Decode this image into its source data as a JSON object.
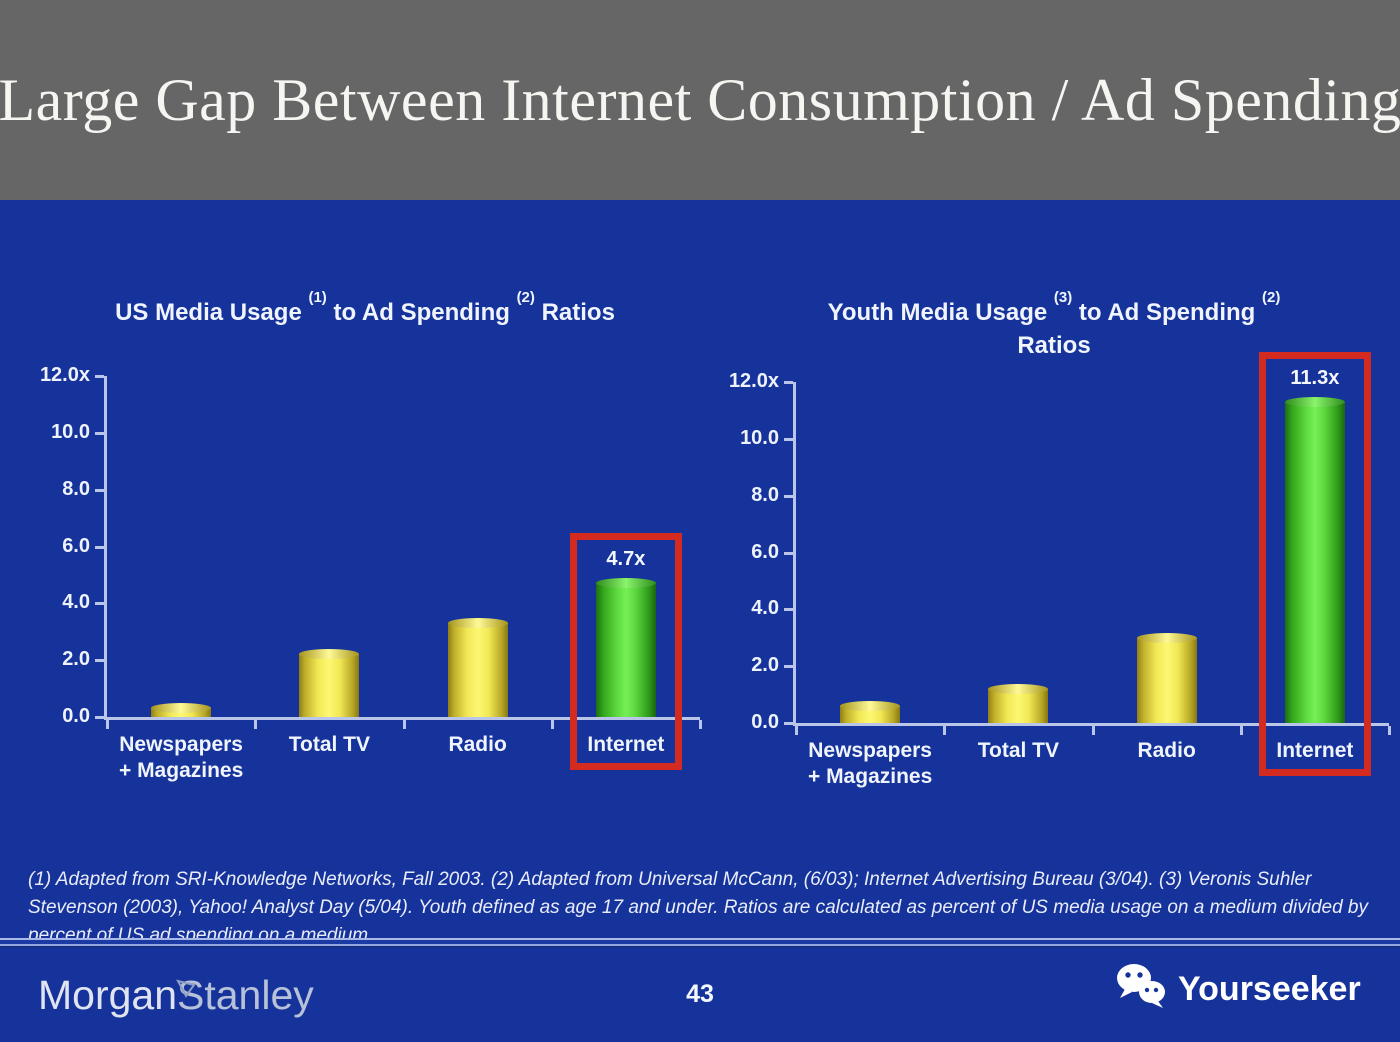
{
  "header": {
    "title": "Large Gap Between Internet Consumption / Ad Spending"
  },
  "chart_data": [
    {
      "type": "bar",
      "id": "us-ratio-chart",
      "title_plain": "US Media Usage (1) to Ad Spending (2) Ratios",
      "title_segments": [
        [
          "text",
          "US Media Usage "
        ],
        [
          "sup",
          "(1)"
        ],
        [
          "text",
          " to Ad Spending "
        ],
        [
          "sup",
          "(2)"
        ],
        [
          "text",
          " Ratios"
        ]
      ],
      "categories": [
        "Newspapers + Magazines",
        "Total TV",
        "Radio",
        "Internet"
      ],
      "category_lines": [
        [
          "Newspapers",
          "+ Magazines"
        ],
        [
          "Total TV"
        ],
        [
          "Radio"
        ],
        [
          "Internet"
        ]
      ],
      "values": [
        0.3,
        2.2,
        3.3,
        4.7
      ],
      "bar_labels": [
        "",
        "",
        "",
        "4.7x"
      ],
      "bar_colors": [
        "yellow",
        "yellow",
        "yellow",
        "green"
      ],
      "highlight_index": 3,
      "ylabel_ticks": [
        "12.0x",
        "10.0",
        "8.0",
        "6.0",
        "4.0",
        "2.0",
        "0.0"
      ],
      "ylim": [
        0,
        12
      ],
      "grid": false,
      "legend": "none"
    },
    {
      "type": "bar",
      "id": "youth-ratio-chart",
      "title_plain": "Youth Media Usage (3) to Ad Spending (2) Ratios",
      "title_segments": [
        [
          "text",
          "Youth Media Usage "
        ],
        [
          "sup",
          "(3)"
        ],
        [
          "text",
          " to Ad Spending "
        ],
        [
          "sup",
          "(2)"
        ],
        [
          "br",
          ""
        ],
        [
          "text",
          "Ratios"
        ]
      ],
      "categories": [
        "Newspapers + Magazines",
        "Total TV",
        "Radio",
        "Internet"
      ],
      "category_lines": [
        [
          "Newspapers",
          "+ Magazines"
        ],
        [
          "Total TV"
        ],
        [
          "Radio"
        ],
        [
          "Internet"
        ]
      ],
      "values": [
        0.6,
        1.2,
        3.0,
        11.3
      ],
      "bar_labels": [
        "",
        "",
        "",
        "11.3x"
      ],
      "bar_colors": [
        "yellow",
        "yellow",
        "yellow",
        "green"
      ],
      "highlight_index": 3,
      "ylabel_ticks": [
        "12.0x",
        "10.0",
        "8.0",
        "6.0",
        "4.0",
        "2.0",
        "0.0"
      ],
      "ylim": [
        0,
        12
      ],
      "grid": false,
      "legend": "none"
    }
  ],
  "footnote": "(1) Adapted from SRI-Knowledge Networks, Fall 2003.  (2) Adapted from Universal McCann, (6/03); Internet Advertising Bureau (3/04). (3) Veronis Suhler Stevenson (2003), Yahoo! Analyst Day (5/04).  Youth defined as age 17 and under.  Ratios are calculated as percent of US media usage on a medium divided by percent of US ad spending on a medium.",
  "footer": {
    "brand": {
      "part1": "Morgan",
      "part2": "Stanley"
    },
    "page_number": "43",
    "watermark": "Yourseeker"
  },
  "colors": {
    "background": "#16339c",
    "header_background": "#666666",
    "axis": "#b9c6ea",
    "bar_yellow": "#f5ec5a",
    "bar_green": "#5bdc3c",
    "highlight_red": "#d42b20",
    "text": "#f0f4fd"
  }
}
